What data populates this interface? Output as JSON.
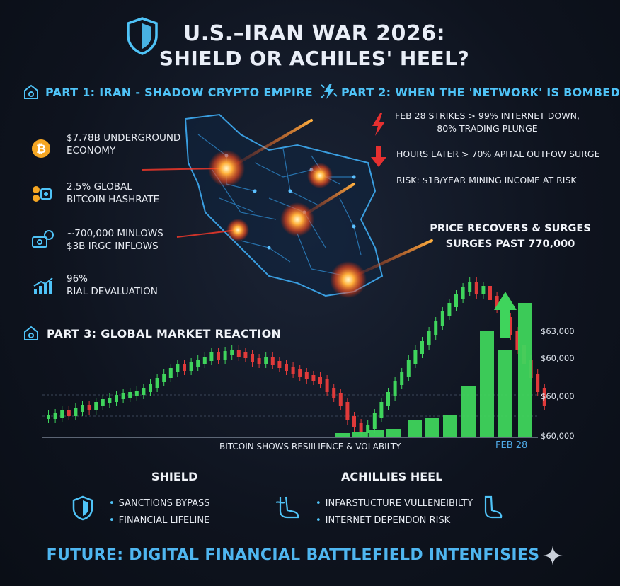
{
  "header": {
    "title_line1": "U.S.–IRAN WAR 2026:",
    "title_line2": "SHIELD OR ACHILES' HEEL?"
  },
  "part1": {
    "heading": "PART 1: IRAN - SHADOW CRYPTO EMPIRE",
    "items": [
      {
        "icon": "bitcoin-coin-icon",
        "line1": "$7.78B UNDERGROUND",
        "line2": "ECONOMY"
      },
      {
        "icon": "mining-rig-icon",
        "line1": "2.5% GLOBAL",
        "line2": "BITCOIN HASHRATE"
      },
      {
        "icon": "money-inflow-icon",
        "line1": "~700,000 MINLOWS",
        "line2": "$3B IRGC INFLOWS"
      },
      {
        "icon": "bar-growth-icon",
        "line1": "96%",
        "line2": "RIAL DEVALUATION"
      }
    ]
  },
  "part2": {
    "heading": "PART 2: WHEN THE 'NETWORK' IS BOMBED",
    "items": [
      {
        "icon": "lightning-icon",
        "line1": "FEB 28 STRIKES > 99% INTERNET DOWN,",
        "line2": "80% TRADING PLUNGE"
      },
      {
        "icon": "down-arrow-icon",
        "line1": "HOURS LATER > 70% APITAL OUTFOW SURGE"
      },
      {
        "line1": "RISK: $1B/YEAR MINING INCOME AT RISK"
      }
    ]
  },
  "recovery": {
    "line1": "PRICE RECOVERS & SURGES",
    "line2": "SURGES PAST 770,000"
  },
  "part3": {
    "heading": "PART 3: GLOBAL MARKET REACTION",
    "price_labels": [
      "$63,000",
      "$60,000",
      "$60,000",
      "$60,000"
    ],
    "caption": "BITCOIN SHOWS RESIILIENCE & VOLABILTY",
    "date_label": "FEB 28"
  },
  "columns": {
    "shield": {
      "heading": "SHIELD",
      "bullets": [
        "SANCTIONS BYPASS",
        "FINANCIAL LIFELINE"
      ]
    },
    "heel": {
      "heading": "ACHILLIES HEEL",
      "bullets": [
        "INFARSTUCTURE VULLENEIBILTY",
        "INTERNET DEPENDON RISK"
      ]
    }
  },
  "footer": {
    "text": "FUTURE: DIGITAL FINANCIAL BATTLEFIELD INTENFISIES"
  },
  "colors": {
    "accent": "#4fc3f7",
    "up": "#3fd45c",
    "down": "#e03a3a",
    "background": "#0e131e"
  }
}
